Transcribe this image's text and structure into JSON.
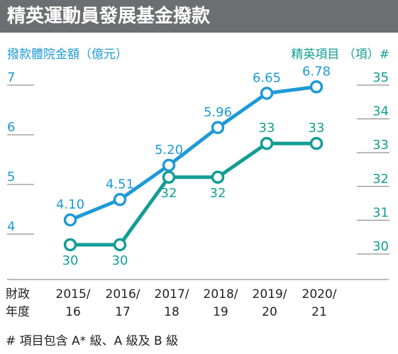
{
  "title": "精英運動員發展基金撥款",
  "fiscal_year_label": [
    "財政",
    "年度"
  ],
  "footnote": "# 項目包含 A* 級、A 級及 B 級",
  "colors": {
    "title_bg": "#6d6e71",
    "funding": "#1e9ad6",
    "projects": "#139d94",
    "axis": "#777777"
  },
  "chart_data": {
    "type": "line",
    "categories": [
      [
        "2015/",
        "16"
      ],
      [
        "2016/",
        "17"
      ],
      [
        "2017/",
        "18"
      ],
      [
        "2018/",
        "19"
      ],
      [
        "2019/",
        "20"
      ],
      [
        "2020/",
        "21"
      ]
    ],
    "left_axis": {
      "label": "撥款體院金額（億元）",
      "ticks": [
        4,
        5,
        6,
        7
      ],
      "range": [
        3.6,
        7.0
      ]
    },
    "right_axis": {
      "label": "精英項目 （項）#",
      "ticks": [
        30,
        31,
        32,
        33,
        34,
        35
      ],
      "range": [
        30,
        35
      ]
    },
    "series": [
      {
        "key": "funding",
        "axis": "left",
        "values": [
          4.1,
          4.51,
          5.2,
          5.96,
          6.65,
          6.78
        ],
        "labels": [
          "4.10",
          "4.51",
          "5.20",
          "5.96",
          "6.65",
          "6.78"
        ]
      },
      {
        "key": "projects",
        "axis": "right",
        "values": [
          30,
          30,
          32,
          32,
          33,
          33
        ],
        "labels": [
          "30",
          "30",
          "32",
          "32",
          "33",
          "33"
        ]
      }
    ]
  }
}
